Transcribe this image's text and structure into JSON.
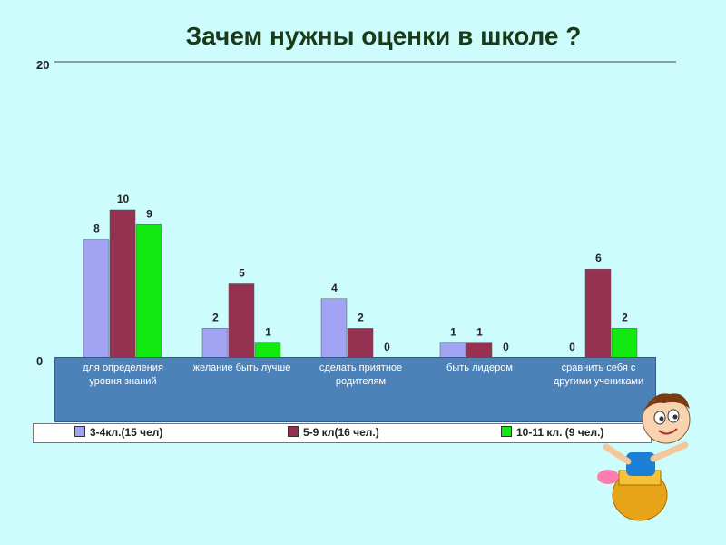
{
  "title": "Зачем нужны  оценки в школе ?",
  "chart_data": {
    "type": "bar",
    "categories": [
      "для определения уровня знаний",
      "желание быть лучше",
      "сделать приятное родителям",
      "быть лидером",
      "сравнить себя с другими учениками"
    ],
    "series": [
      {
        "name": "3-4кл.(15 чел)",
        "color": "#a3a3f4",
        "values": [
          8,
          2,
          4,
          1,
          0
        ]
      },
      {
        "name": "5-9 кл(16 чел.)",
        "color": "#963251",
        "values": [
          10,
          5,
          2,
          1,
          6
        ]
      },
      {
        "name": "10-11 кл. (9 чел.)",
        "color": "#11e911",
        "values": [
          9,
          1,
          0,
          0,
          2
        ]
      }
    ],
    "y_ticks": [
      "0",
      "20"
    ],
    "ylim": [
      0,
      20
    ],
    "legend_position": "bottom"
  }
}
